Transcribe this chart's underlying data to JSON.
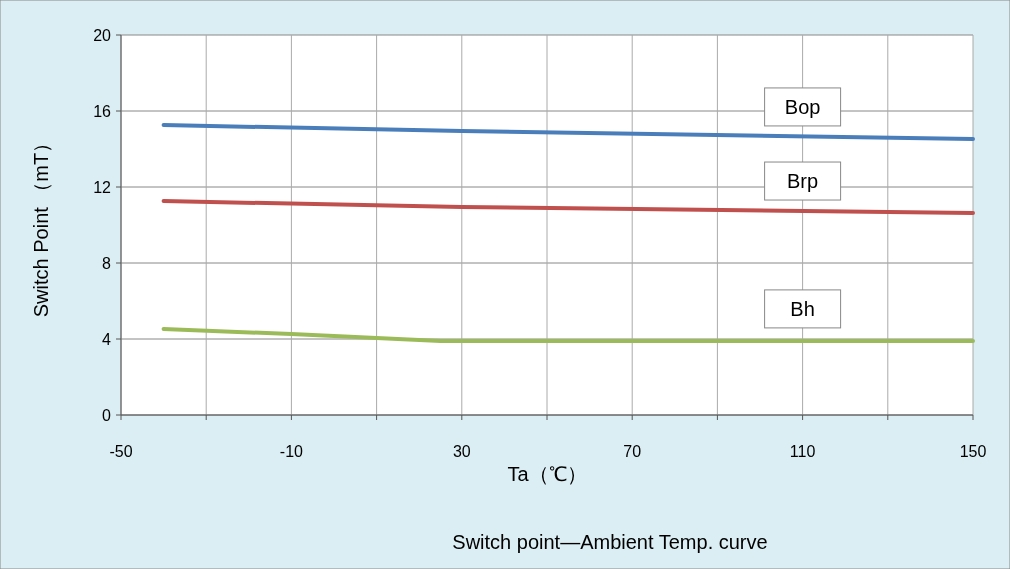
{
  "chart_data": {
    "type": "line",
    "xlabel": "Ta（℃）",
    "ylabel": "Switch Point （mT）",
    "xlim": [
      -50,
      150
    ],
    "ylim": [
      0,
      20
    ],
    "xticks": [
      -50,
      {
        "value": -30,
        "label": null
      },
      -10,
      {
        "value": 10,
        "label": null
      },
      30,
      {
        "value": 50,
        "label": null
      },
      70,
      {
        "value": 90,
        "label": null
      },
      110,
      {
        "value": 130,
        "label": null
      },
      150
    ],
    "yticks": [
      0,
      4,
      8,
      12,
      16,
      20
    ],
    "grid": true,
    "line_style": "solid",
    "marker": "none",
    "series": [
      {
        "name": "Bop",
        "color": "#4a7ebb",
        "x": [
          -40,
          30,
          150
        ],
        "values": [
          15.26,
          14.95,
          14.53
        ]
      },
      {
        "name": "Brp",
        "color": "#c0504d",
        "x": [
          -40,
          30,
          150
        ],
        "values": [
          11.26,
          10.95,
          10.63
        ]
      },
      {
        "name": "Bh",
        "color": "#9bbb59",
        "x": [
          -40,
          -10,
          25,
          150
        ],
        "values": [
          4.53,
          4.26,
          3.9,
          3.9
        ]
      }
    ],
    "annotations": [
      "Switch point—Ambient Temp. curve"
    ]
  }
}
